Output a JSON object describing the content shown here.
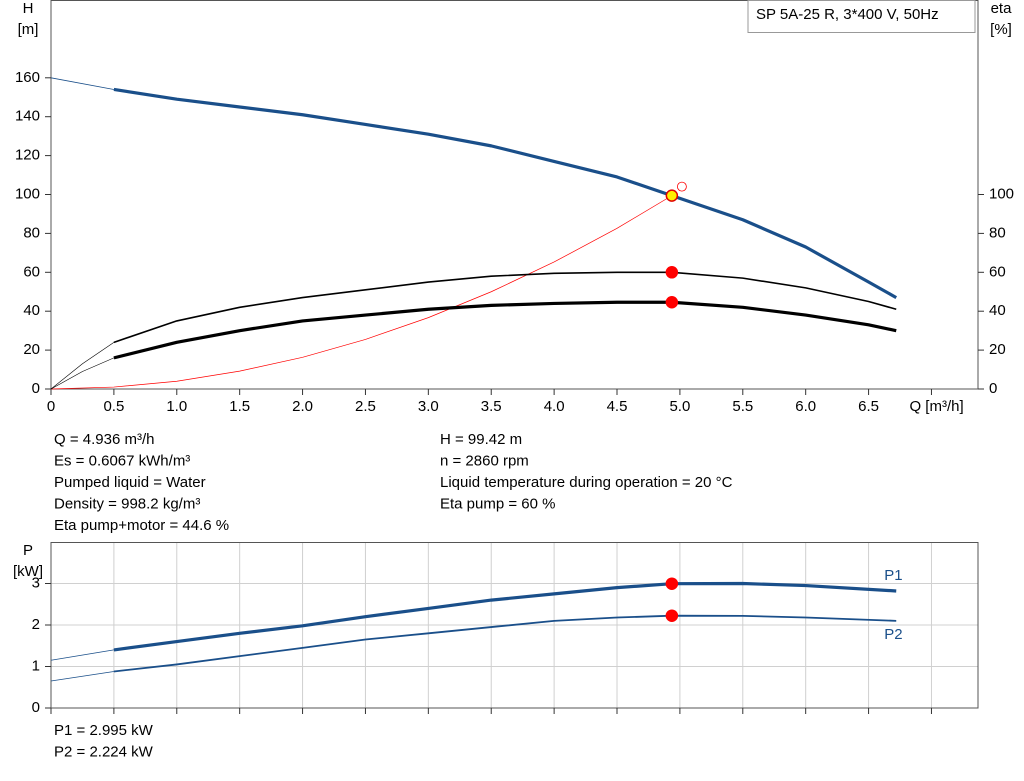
{
  "chart_data": [
    {
      "type": "line",
      "title": "SP 5A-25 R, 3*400 V, 50Hz",
      "ylabel": "H",
      "yunit": "[m]",
      "y2label": "eta",
      "y2unit": "[%]",
      "xlim": [
        0,
        7.37
      ],
      "ylim": [
        0,
        200
      ],
      "y2lim": [
        0,
        200
      ],
      "xticks": [
        0,
        0.5,
        {
          "value": 1,
          "label": "1.0"
        },
        1.5,
        {
          "value": 2,
          "label": "2.0"
        },
        2.5,
        {
          "value": 3,
          "label": "3.0"
        },
        3.5,
        {
          "value": 4,
          "label": "4.0"
        },
        4.5,
        {
          "value": 5,
          "label": "5.0"
        },
        5.5,
        {
          "value": 6,
          "label": "6.0"
        },
        6.5,
        {
          "value": 7,
          "label": "Q [m³/h]"
        }
      ],
      "yticks": [
        0,
        20,
        40,
        60,
        80,
        100,
        120,
        140,
        160
      ],
      "y2ticks": [
        0,
        20,
        40,
        60,
        80,
        100
      ],
      "grid": false,
      "show_xtick_labels": true,
      "series": [
        {
          "color": "#ff0000",
          "width": 0.7,
          "axis": "y",
          "x": [
            0,
            0.5,
            1,
            1.5,
            2,
            2.5,
            3,
            3.5,
            4,
            4.5,
            4.936
          ],
          "values": [
            0,
            1,
            4,
            9.2,
            16.3,
            25.5,
            36.7,
            50,
            65.3,
            82.6,
            99.42
          ]
        },
        {
          "color": "#1a4f8a",
          "width": 0.8,
          "axis": "y",
          "x": [
            0,
            0.5
          ],
          "values": [
            160,
            154
          ]
        },
        {
          "color": "#1a4f8a",
          "width": 3.2,
          "axis": "y",
          "x": [
            0.5,
            1,
            1.5,
            2,
            2.5,
            3,
            3.5,
            4,
            4.5,
            4.936,
            5.5,
            6,
            6.5,
            6.72
          ],
          "values": [
            154,
            149,
            145,
            141,
            136,
            131,
            125,
            117,
            109,
            99.42,
            87,
            73,
            55,
            47
          ]
        },
        {
          "color": "#000000",
          "width": 0.6,
          "axis": "y2",
          "x": [
            0,
            0.25,
            0.5
          ],
          "values": [
            0,
            13,
            24
          ]
        },
        {
          "color": "#000000",
          "width": 1.6,
          "axis": "y2",
          "x": [
            0.5,
            1,
            1.5,
            2,
            2.5,
            3,
            3.5,
            4,
            4.5,
            4.936,
            5.5,
            6,
            6.5,
            6.72
          ],
          "values": [
            24,
            35,
            42,
            47,
            51,
            55,
            58,
            59.5,
            60,
            60,
            57,
            52,
            45,
            41
          ]
        },
        {
          "color": "#000000",
          "width": 0.6,
          "axis": "y2",
          "x": [
            0,
            0.25,
            0.5
          ],
          "values": [
            0,
            9,
            16
          ]
        },
        {
          "color": "#000000",
          "width": 3.2,
          "axis": "y2",
          "x": [
            0.5,
            1,
            1.5,
            2,
            2.5,
            3,
            3.5,
            4,
            4.5,
            4.936,
            5.5,
            6,
            6.5,
            6.72
          ],
          "values": [
            16,
            24,
            30,
            35,
            38,
            41,
            43,
            44,
            44.6,
            44.6,
            42,
            38,
            33,
            30
          ]
        }
      ],
      "points": [
        {
          "x": 5.0,
          "y": 102,
          "color": "#ff0000",
          "style": "open"
        },
        {
          "x": 4.936,
          "y": 99.42,
          "color": "#ffee00",
          "style": "filled"
        },
        {
          "x": 4.936,
          "y": 60,
          "color": "#ff0000",
          "style": "filled"
        },
        {
          "x": 4.936,
          "y": 44.6,
          "color": "#ff0000",
          "style": "filled"
        }
      ],
      "annotations": [
        [
          "Q = 4.936 m³/h",
          "Es = 0.6067 kWh/m³",
          "Pumped liquid = Water",
          "Density = 998.2 kg/m³",
          "Eta pump+motor = 44.6 %"
        ],
        [
          "H = 99.42 m",
          "n = 2860 rpm",
          "Liquid temperature during operation = 20 °C",
          "Eta pump = 60 %"
        ]
      ]
    },
    {
      "type": "line",
      "ylabel": "P",
      "yunit": "[kW]",
      "xlim": [
        0,
        7.37
      ],
      "ylim": [
        0,
        4
      ],
      "xticks": [
        0,
        0.5,
        1,
        1.5,
        2,
        2.5,
        3,
        3.5,
        4,
        4.5,
        5,
        5.5,
        6,
        6.5,
        7
      ],
      "yticks": [
        0,
        1,
        2,
        3
      ],
      "grid": true,
      "show_xtick_labels": false,
      "series": [
        {
          "color": "#1a4f8a",
          "width": 0.8,
          "axis": "y",
          "x": [
            0,
            0.5
          ],
          "values": [
            1.15,
            1.4
          ]
        },
        {
          "name": "P1",
          "color": "#1a4f8a",
          "width": 3.2,
          "axis": "y",
          "x": [
            0.5,
            1,
            1.5,
            2,
            2.5,
            3,
            3.5,
            4,
            4.5,
            4.936,
            5.5,
            6,
            6.72
          ],
          "values": [
            1.4,
            1.6,
            1.8,
            1.98,
            2.2,
            2.4,
            2.6,
            2.75,
            2.9,
            2.995,
            3.0,
            2.95,
            2.82
          ]
        },
        {
          "color": "#1a4f8a",
          "width": 0.8,
          "axis": "y",
          "x": [
            0,
            0.5
          ],
          "values": [
            0.65,
            0.88
          ]
        },
        {
          "name": "P2",
          "color": "#1a4f8a",
          "width": 1.8,
          "axis": "y",
          "x": [
            0.5,
            1,
            1.5,
            2,
            2.5,
            3,
            3.5,
            4,
            4.5,
            4.936,
            5.5,
            6,
            6.72
          ],
          "values": [
            0.88,
            1.05,
            1.25,
            1.45,
            1.65,
            1.8,
            1.95,
            2.1,
            2.18,
            2.224,
            2.22,
            2.18,
            2.1
          ]
        }
      ],
      "points": [
        {
          "x": 4.936,
          "y": 2.995,
          "color": "#ff0000",
          "style": "filled"
        },
        {
          "x": 4.936,
          "y": 2.224,
          "color": "#ff0000",
          "style": "filled"
        }
      ],
      "annotations": [
        [
          "P1 = 2.995 kW",
          "P2 = 2.224 kW"
        ]
      ]
    }
  ]
}
